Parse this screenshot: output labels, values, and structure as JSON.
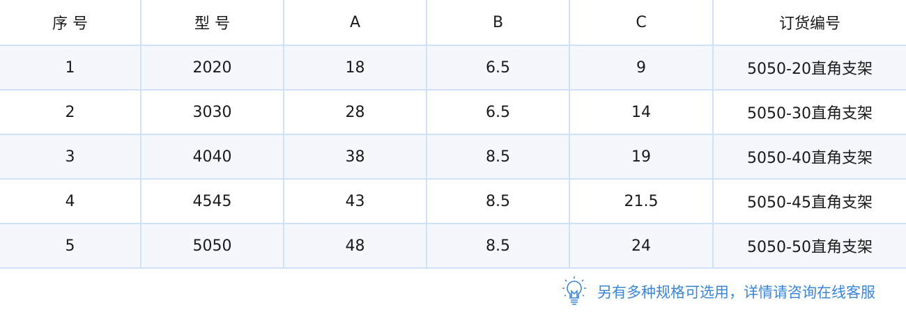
{
  "table": {
    "headers": [
      "序 号",
      "型 号",
      "A",
      "B",
      "C",
      "订货编号"
    ],
    "rows": [
      [
        "1",
        "2020",
        "18",
        "6.5",
        "9",
        "5050-20直角支架"
      ],
      [
        "2",
        "3030",
        "28",
        "6.5",
        "14",
        "5050-30直角支架"
      ],
      [
        "3",
        "4040",
        "38",
        "8.5",
        "19",
        "5050-40直角支架"
      ],
      [
        "4",
        "4545",
        "43",
        "8.5",
        "21.5",
        "5050-45直角支架"
      ],
      [
        "5",
        "5050",
        "48",
        "8.5",
        "24",
        "5050-50直角支架"
      ]
    ]
  },
  "note": {
    "icon": "lightbulb-icon",
    "text": "另有多种规格可选用，详情请咨询在线客服",
    "color": "#3a86d9"
  },
  "colors": {
    "border": "#cfe2f7",
    "stripe": "#f4f8fd"
  }
}
